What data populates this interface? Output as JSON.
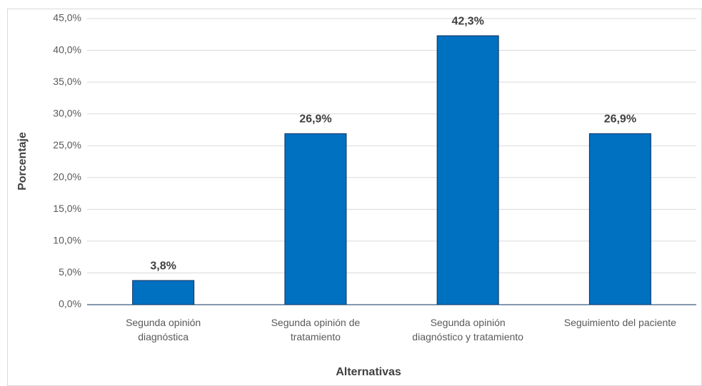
{
  "chart_data": {
    "type": "bar",
    "categories": [
      "Segunda opinión diagnóstica",
      "Segunda opinión de tratamiento",
      "Segunda opinión diagnóstico y tratamiento",
      "Seguimiento del paciente"
    ],
    "values": [
      3.8,
      26.9,
      42.3,
      26.9
    ],
    "value_labels": [
      "3,8%",
      "26,9%",
      "42,3%",
      "26,9%"
    ],
    "color": "#0070c0",
    "xlabel": "Alternativas",
    "ylabel": "Porcentaje",
    "ylim": [
      0,
      45
    ],
    "yticks": [
      {
        "value": 0,
        "label": "0,0%"
      },
      {
        "value": 5,
        "label": "5,0%"
      },
      {
        "value": 10,
        "label": "10,0%"
      },
      {
        "value": 15,
        "label": "15,0%"
      },
      {
        "value": 20,
        "label": "20,0%"
      },
      {
        "value": 25,
        "label": "25,0%"
      },
      {
        "value": 30,
        "label": "30,0%"
      },
      {
        "value": 35,
        "label": "35,0%"
      },
      {
        "value": 40,
        "label": "40,0%"
      },
      {
        "value": 45,
        "label": "45,0%"
      }
    ],
    "grid": true
  }
}
